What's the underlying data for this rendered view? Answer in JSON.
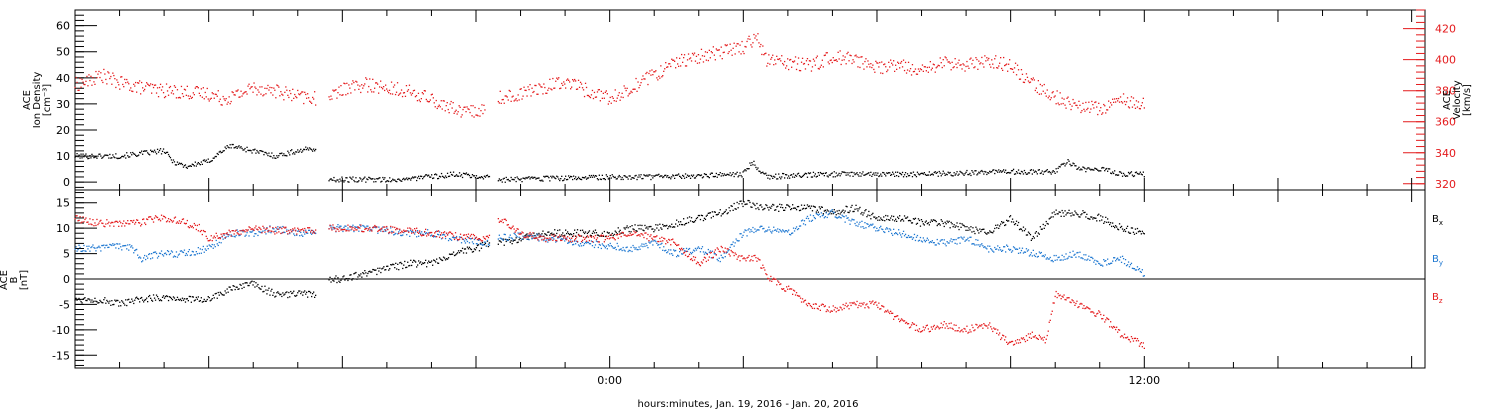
{
  "figure": {
    "xlabel": "hours:minutes, Jan. 19, 2016 - Jan. 20, 2016",
    "x_tick_labels": [
      {
        "hour": 0,
        "label": "0:00"
      },
      {
        "hour": 12,
        "label": "12:00"
      }
    ],
    "x_range_hours": [
      -12,
      18.3
    ]
  },
  "colors": {
    "black": "#000000",
    "red": "#e41a1c",
    "blue": "#1f78d1"
  },
  "chart_data": [
    {
      "type": "scatter",
      "panel": "plasma",
      "left_axis": {
        "lines": [
          "ACE",
          "Ion Density",
          "[cm⁻³]"
        ],
        "ylim": [
          -3,
          66
        ],
        "ticks": [
          0,
          10,
          20,
          30,
          40,
          50,
          60
        ]
      },
      "right_axis": {
        "lines": [
          "ACE",
          "Velocity",
          "[km/s]"
        ],
        "ylim": [
          316,
          432
        ],
        "ticks": [
          320,
          340,
          360,
          380,
          400,
          420
        ],
        "color": "#e41a1c"
      },
      "series": [
        {
          "axis": "left",
          "color": "#000000",
          "segments": [
            {
              "x": [
                -12.0,
                -11.0,
                -10.5,
                -10.0,
                -9.8,
                -9.5,
                -9.0,
                -8.7,
                -8.5,
                -8.0,
                -7.5,
                -7.0,
                -6.6
              ],
              "y": [
                10,
                10,
                11,
                12,
                8,
                6,
                8,
                12,
                14,
                12,
                10,
                12,
                13
              ]
            },
            {
              "x": [
                -6.3,
                -5.5,
                -4.7,
                -4.0,
                -3.5,
                -3.0,
                -2.7
              ],
              "y": [
                1,
                1,
                1,
                2,
                3,
                2.5,
                2
              ]
            },
            {
              "x": [
                -2.5,
                -2.0,
                -1.0,
                0.0,
                1.0,
                2.0,
                3.0,
                3.2,
                3.4,
                3.6,
                4.0,
                5.0,
                6.0,
                7.0,
                8.0,
                9.0,
                9.5,
                10.0,
                10.3,
                10.5,
                11.0,
                11.5,
                12.0
              ],
              "y": [
                1,
                1,
                1.5,
                2,
                2,
                2.5,
                3,
                8,
                4,
                2,
                2.5,
                3,
                3,
                3,
                3.5,
                4,
                4,
                4,
                8,
                5,
                5,
                3,
                3
              ]
            }
          ]
        },
        {
          "axis": "right",
          "color": "#e41a1c",
          "segments": [
            {
              "x": [
                -12.0,
                -11.7,
                -11.4,
                -11.0,
                -10.5,
                -10.0,
                -9.5,
                -9.0,
                -8.7,
                -8.5,
                -8.3,
                -8.0,
                -7.5,
                -7.0,
                -6.6
              ],
              "y": [
                384,
                386,
                390,
                385,
                382,
                380,
                379,
                378,
                375,
                376,
                378,
                382,
                380,
                376,
                375
              ]
            },
            {
              "x": [
                -6.3,
                -5.5,
                -5.0,
                -4.5,
                -4.0,
                -3.5,
                -3.0,
                -2.8
              ],
              "y": [
                378,
                384,
                382,
                380,
                374,
                368,
                366,
                368
              ]
            },
            {
              "x": [
                -2.5,
                -2.0,
                -1.5,
                -1.0,
                -0.5,
                0.0,
                0.5,
                1.0,
                1.5,
                2.0,
                2.5,
                3.0,
                3.3,
                3.5,
                4.0,
                4.5,
                5.0,
                5.5,
                6.0,
                6.5,
                7.0,
                7.5,
                8.0,
                8.5,
                9.0,
                9.5,
                10.0,
                10.5,
                11.0,
                11.5,
                12.0
              ],
              "y": [
                375,
                378,
                382,
                386,
                380,
                375,
                382,
                390,
                398,
                402,
                405,
                408,
                415,
                400,
                398,
                396,
                402,
                400,
                395,
                396,
                392,
                398,
                396,
                400,
                396,
                384,
                376,
                370,
                368,
                374,
                372
              ]
            }
          ]
        }
      ]
    },
    {
      "type": "scatter",
      "panel": "magnetic",
      "left_axis": {
        "lines": [
          "ACE",
          "B",
          "[nT]"
        ],
        "ylim": [
          -17.5,
          17.5
        ],
        "ticks": [
          -15,
          -10,
          -5,
          0,
          5,
          10,
          15
        ],
        "zero_line": true
      },
      "legend": {
        "placement": "right",
        "entries": [
          {
            "base": "B",
            "sub": "x",
            "color": "#000000"
          },
          {
            "base": "B",
            "sub": "y",
            "color": "#1f78d1"
          },
          {
            "base": "B",
            "sub": "z",
            "color": "#e41a1c"
          }
        ]
      },
      "series": [
        {
          "name": "Bx",
          "color": "#000000",
          "segments": [
            {
              "x": [
                -12.0,
                -11.5,
                -11.0,
                -10.5,
                -10.0,
                -9.5,
                -9.0,
                -8.5,
                -8.0,
                -7.5,
                -7.0,
                -6.6
              ],
              "y": [
                -4,
                -4,
                -5,
                -4,
                -3.5,
                -4,
                -4,
                -2,
                -1,
                -3,
                -3,
                -3
              ]
            },
            {
              "x": [
                -6.3,
                -6.0,
                -5.5,
                -5.0,
                -4.5,
                -4.0,
                -3.5,
                -3.0,
                -2.7
              ],
              "y": [
                0,
                0,
                1,
                2,
                3,
                3,
                5,
                6,
                7
              ]
            },
            {
              "x": [
                -2.5,
                -2.0,
                -1.5,
                -1.0,
                -0.5,
                0.0,
                0.5,
                1.0,
                1.5,
                2.0,
                2.5,
                3.0,
                3.5,
                4.0,
                4.5,
                5.0,
                5.5,
                6.0,
                6.5,
                7.0,
                7.5,
                8.0,
                8.5,
                9.0,
                9.5,
                10.0,
                10.5,
                11.0,
                11.5,
                12.0
              ],
              "y": [
                7,
                8,
                9,
                9,
                9,
                9,
                10,
                10,
                11,
                12,
                13,
                15,
                14,
                14,
                14,
                13,
                14,
                12,
                12,
                11,
                11,
                10,
                9,
                12,
                8,
                13,
                13,
                12,
                10,
                9
              ]
            }
          ]
        },
        {
          "name": "By",
          "color": "#1f78d1",
          "segments": [
            {
              "x": [
                -12.0,
                -11.5,
                -11.0,
                -10.7,
                -10.5,
                -10.0,
                -9.5,
                -9.0,
                -8.5,
                -8.0,
                -7.5,
                -7.0,
                -6.6
              ],
              "y": [
                6,
                6,
                6.5,
                6,
                4,
                5,
                5,
                6,
                9,
                9,
                10,
                9,
                9
              ]
            },
            {
              "x": [
                -6.3,
                -5.5,
                -4.5,
                -4.0,
                -3.5,
                -3.0,
                -2.7
              ],
              "y": [
                10,
                10,
                9,
                9,
                8,
                7.5,
                7
              ]
            },
            {
              "x": [
                -2.5,
                -2.0,
                -1.5,
                -1.0,
                -0.5,
                0.0,
                0.5,
                1.0,
                1.5,
                2.0,
                2.5,
                3.0,
                3.5,
                4.0,
                4.5,
                5.0,
                5.5,
                6.0,
                6.5,
                7.0,
                7.5,
                8.0,
                8.5,
                9.0,
                9.5,
                10.0,
                10.5,
                11.0,
                11.5,
                11.8,
                12.0
              ],
              "y": [
                8,
                8.5,
                8,
                7.5,
                7,
                6.5,
                6,
                7,
                5,
                6,
                4,
                9,
                10,
                9,
                12,
                13,
                11,
                10,
                9,
                8,
                7,
                8,
                6,
                6,
                5,
                4,
                5,
                3,
                4,
                2,
                1
              ]
            }
          ]
        },
        {
          "name": "Bz",
          "color": "#e41a1c",
          "segments": [
            {
              "x": [
                -12.0,
                -11.5,
                -11.0,
                -10.5,
                -10.2,
                -10.0,
                -9.5,
                -9.2,
                -9.0,
                -8.5,
                -8.0,
                -7.5,
                -7.0,
                -6.6
              ],
              "y": [
                12,
                11,
                11,
                11,
                12,
                12,
                11,
                10,
                8,
                9,
                10,
                9.5,
                9.5,
                9.5
              ]
            },
            {
              "x": [
                -6.3,
                -5.5,
                -4.5,
                -4.0,
                -3.5,
                -3.0,
                -2.7
              ],
              "y": [
                10,
                10,
                9.5,
                9,
                8.5,
                8,
                8
              ]
            },
            {
              "x": [
                -2.5,
                -2.0,
                -1.5,
                -1.0,
                -0.5,
                0.0,
                0.5,
                1.0,
                1.5,
                2.0,
                2.5,
                3.0,
                3.3,
                3.6,
                4.0,
                4.5,
                5.0,
                5.5,
                6.0,
                6.5,
                7.0,
                7.5,
                8.0,
                8.5,
                9.0,
                9.5,
                9.8,
                10.0,
                10.5,
                11.0,
                11.5,
                12.0
              ],
              "y": [
                12,
                9,
                8,
                8,
                8,
                8,
                9,
                8,
                7,
                3,
                6,
                4,
                4,
                0,
                -2,
                -5,
                -6,
                -5,
                -5,
                -8,
                -10,
                -9,
                -10,
                -9,
                -13,
                -11,
                -12,
                -3,
                -5,
                -7,
                -11,
                -13
              ]
            }
          ]
        }
      ]
    }
  ]
}
